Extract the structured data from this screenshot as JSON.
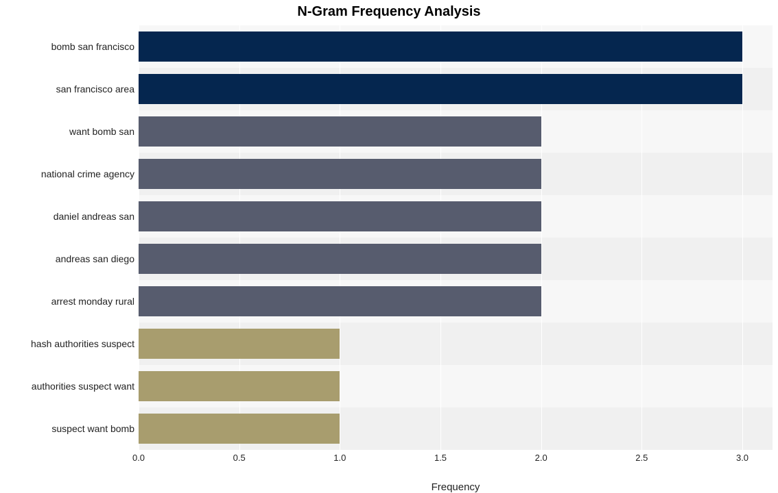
{
  "chart": {
    "type": "bar-horizontal",
    "title": "N-Gram Frequency Analysis",
    "title_fontsize": 20,
    "title_fontweight": "bold",
    "xlabel": "Frequency",
    "xlabel_fontsize": 15,
    "ylabel_fontsize": 14,
    "xlim": [
      0,
      3.15
    ],
    "xticks": [
      0.0,
      0.5,
      1.0,
      1.5,
      2.0,
      2.5,
      3.0
    ],
    "xtick_labels": [
      "0.0",
      "0.5",
      "1.0",
      "1.5",
      "2.0",
      "2.5",
      "3.0"
    ],
    "background_color": "#f7f7f7",
    "alt_band_color": "#f0f0f0",
    "grid_color": "#ffffff",
    "categories": [
      "bomb san francisco",
      "san francisco area",
      "want bomb san",
      "national crime agency",
      "daniel andreas san",
      "andreas san diego",
      "arrest monday rural",
      "hash authorities suspect",
      "authorities suspect want",
      "suspect want bomb"
    ],
    "values": [
      3,
      3,
      2,
      2,
      2,
      2,
      2,
      1,
      1,
      1
    ],
    "bar_colors": [
      "#05264f",
      "#05264f",
      "#575c6e",
      "#575c6e",
      "#575c6e",
      "#575c6e",
      "#575c6e",
      "#a89d6e",
      "#a89d6e",
      "#a89d6e"
    ],
    "bar_height_ratio": 0.72
  }
}
